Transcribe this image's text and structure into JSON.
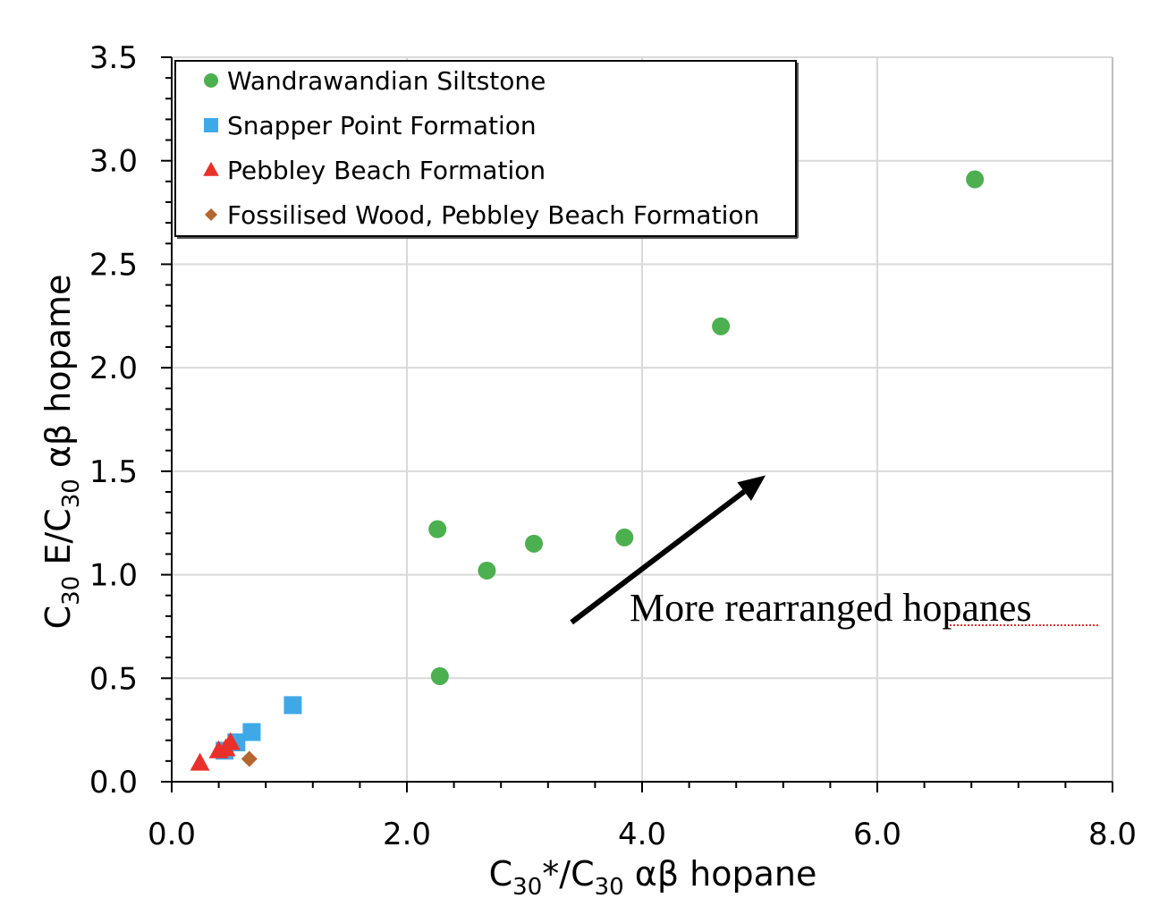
{
  "chart_data": {
    "type": "scatter",
    "xlabel": {
      "base": "C",
      "sub": "30",
      "mid": "*/C",
      "sub2": "30",
      "rest": " αβ hopane"
    },
    "ylabel": {
      "base": "C",
      "sub": "30",
      "mid": " E/C",
      "sub2": "30",
      "rest": " αβ hopame"
    },
    "xlim": [
      0,
      8
    ],
    "ylim": [
      0,
      3.5
    ],
    "x_ticks": [
      0,
      2,
      4,
      6,
      8
    ],
    "x_tick_labels": [
      "0.0",
      "2.0",
      "4.0",
      "6.0",
      "8.0"
    ],
    "y_ticks": [
      0,
      0.5,
      1,
      1.5,
      2,
      2.5,
      3,
      3.5
    ],
    "y_tick_labels": [
      "0.0",
      "0.5",
      "1.0",
      "1.5",
      "2.0",
      "2.5",
      "3.0",
      "3.5"
    ],
    "grid": true,
    "legend_position": "top-left",
    "series": [
      {
        "name": "Wandrawandian Siltstone",
        "marker": "circle",
        "color": "#4CAF50",
        "points": [
          [
            2.26,
            1.22
          ],
          [
            2.28,
            0.51
          ],
          [
            2.68,
            1.02
          ],
          [
            3.08,
            1.15
          ],
          [
            3.85,
            1.18
          ],
          [
            4.67,
            2.2
          ],
          [
            6.83,
            2.91
          ]
        ]
      },
      {
        "name": "Snapper Point Formation",
        "marker": "square",
        "color": "#3FA9E8",
        "points": [
          [
            0.45,
            0.15
          ],
          [
            0.55,
            0.19
          ],
          [
            0.68,
            0.24
          ],
          [
            1.03,
            0.37
          ]
        ]
      },
      {
        "name": "Pebbley Beach Formation",
        "marker": "triangle",
        "color": "#E8312A",
        "points": [
          [
            0.24,
            0.09
          ],
          [
            0.4,
            0.15
          ],
          [
            0.46,
            0.16
          ],
          [
            0.5,
            0.19
          ]
        ]
      },
      {
        "name": "Fossilised Wood, Pebbley Beach Formation",
        "marker": "diamond",
        "color": "#B5652E",
        "points": [
          [
            0.66,
            0.11
          ]
        ]
      }
    ],
    "annotation": {
      "text": "More rearranged hopanes",
      "arrow_from": [
        3.4,
        0.77
      ],
      "arrow_to": [
        5.05,
        1.48
      ]
    }
  }
}
